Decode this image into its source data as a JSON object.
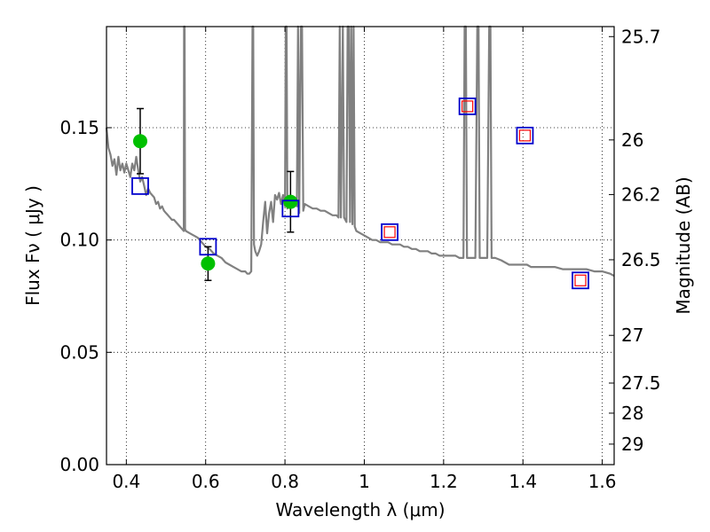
{
  "chart_data": {
    "type": "scatter",
    "xlabel": "Wavelength  λ (μm)",
    "ylabel": "Flux  Fν  ( μJy )",
    "y2label": "Magnitude (AB)",
    "xlim": [
      0.35,
      1.63
    ],
    "ylim": [
      0.0,
      0.195
    ],
    "grid": true,
    "x_ticks": [
      0.4,
      0.6,
      0.8,
      1.0,
      1.2,
      1.4,
      1.6
    ],
    "x_tick_labels": [
      "0.4",
      "0.6",
      "0.8",
      "1",
      "1.2",
      "1.4",
      "1.6"
    ],
    "y_ticks": [
      0.0,
      0.05,
      0.1,
      0.15
    ],
    "y_tick_labels": [
      "0.00",
      "0.05",
      "0.10",
      "0.15"
    ],
    "mag_ticks": [
      25.7,
      26,
      26.2,
      26.5,
      27,
      27.5,
      28,
      29
    ],
    "mag_tick_labels": [
      "25.7",
      "26",
      "26.2",
      "26.5",
      "27",
      "27.5",
      "28",
      "29"
    ],
    "series": [
      {
        "kind": "observed",
        "marker": "circle",
        "color": "#00c000",
        "points": [
          {
            "x": 0.435,
            "y": 0.144,
            "yerr": 0.0145
          },
          {
            "x": 0.606,
            "y": 0.0895,
            "yerr": 0.0075
          },
          {
            "x": 0.814,
            "y": 0.117,
            "yerr": 0.0135
          }
        ]
      },
      {
        "kind": "model_band_flux",
        "marker": "open-square",
        "color": "#0000cc",
        "points": [
          {
            "x": 0.435,
            "y": 0.124
          },
          {
            "x": 0.606,
            "y": 0.097
          },
          {
            "x": 0.814,
            "y": 0.114
          },
          {
            "x": 1.064,
            "y": 0.1035
          },
          {
            "x": 1.26,
            "y": 0.1595
          },
          {
            "x": 1.405,
            "y": 0.1465
          },
          {
            "x": 1.545,
            "y": 0.082
          }
        ]
      },
      {
        "kind": "model_band_flux_inner",
        "marker": "open-square",
        "color": "#ff0000",
        "points": [
          {
            "x": 1.064,
            "y": 0.1035
          },
          {
            "x": 1.26,
            "y": 0.1595
          },
          {
            "x": 1.405,
            "y": 0.1465
          },
          {
            "x": 1.545,
            "y": 0.082
          }
        ]
      }
    ],
    "model_spectrum": {
      "color": "#808080",
      "points": [
        [
          0.35,
          0.15
        ],
        [
          0.355,
          0.141
        ],
        [
          0.36,
          0.138
        ],
        [
          0.365,
          0.133
        ],
        [
          0.37,
          0.136
        ],
        [
          0.375,
          0.129
        ],
        [
          0.38,
          0.137
        ],
        [
          0.385,
          0.131
        ],
        [
          0.39,
          0.134
        ],
        [
          0.395,
          0.13
        ],
        [
          0.4,
          0.134
        ],
        [
          0.405,
          0.131
        ],
        [
          0.41,
          0.128
        ],
        [
          0.415,
          0.134
        ],
        [
          0.42,
          0.131
        ],
        [
          0.425,
          0.137
        ],
        [
          0.43,
          0.131
        ],
        [
          0.435,
          0.126
        ],
        [
          0.44,
          0.128
        ],
        [
          0.445,
          0.124
        ],
        [
          0.45,
          0.12
        ],
        [
          0.455,
          0.123
        ],
        [
          0.46,
          0.121
        ],
        [
          0.465,
          0.12
        ],
        [
          0.47,
          0.119
        ],
        [
          0.475,
          0.116
        ],
        [
          0.48,
          0.117
        ],
        [
          0.485,
          0.114
        ],
        [
          0.49,
          0.115
        ],
        [
          0.495,
          0.113
        ],
        [
          0.5,
          0.112
        ],
        [
          0.505,
          0.111
        ],
        [
          0.51,
          0.11
        ],
        [
          0.515,
          0.109
        ],
        [
          0.52,
          0.109
        ],
        [
          0.525,
          0.108
        ],
        [
          0.53,
          0.107
        ],
        [
          0.535,
          0.106
        ],
        [
          0.54,
          0.105
        ],
        [
          0.545,
          0.104
        ],
        [
          0.5455,
          0.195
        ],
        [
          0.547,
          0.195
        ],
        [
          0.548,
          0.105
        ],
        [
          0.55,
          0.104
        ],
        [
          0.56,
          0.103
        ],
        [
          0.57,
          0.102
        ],
        [
          0.58,
          0.101
        ],
        [
          0.59,
          0.099
        ],
        [
          0.6,
          0.097
        ],
        [
          0.61,
          0.096
        ],
        [
          0.62,
          0.094
        ],
        [
          0.63,
          0.093
        ],
        [
          0.64,
          0.092
        ],
        [
          0.65,
          0.09
        ],
        [
          0.66,
          0.089
        ],
        [
          0.67,
          0.088
        ],
        [
          0.68,
          0.087
        ],
        [
          0.69,
          0.086
        ],
        [
          0.7,
          0.086
        ],
        [
          0.705,
          0.085
        ],
        [
          0.71,
          0.085
        ],
        [
          0.715,
          0.086
        ],
        [
          0.718,
          0.195
        ],
        [
          0.72,
          0.195
        ],
        [
          0.722,
          0.098
        ],
        [
          0.725,
          0.095
        ],
        [
          0.73,
          0.093
        ],
        [
          0.735,
          0.095
        ],
        [
          0.74,
          0.098
        ],
        [
          0.745,
          0.108
        ],
        [
          0.75,
          0.117
        ],
        [
          0.755,
          0.103
        ],
        [
          0.76,
          0.112
        ],
        [
          0.765,
          0.117
        ],
        [
          0.77,
          0.108
        ],
        [
          0.775,
          0.12
        ],
        [
          0.78,
          0.118
        ],
        [
          0.785,
          0.121
        ],
        [
          0.79,
          0.116
        ],
        [
          0.795,
          0.12
        ],
        [
          0.8,
          0.115
        ],
        [
          0.802,
          0.195
        ],
        [
          0.804,
          0.195
        ],
        [
          0.806,
          0.114
        ],
        [
          0.81,
          0.118
        ],
        [
          0.815,
          0.116
        ],
        [
          0.82,
          0.119
        ],
        [
          0.825,
          0.116
        ],
        [
          0.83,
          0.115
        ],
        [
          0.833,
          0.195
        ],
        [
          0.836,
          0.112
        ],
        [
          0.84,
          0.195
        ],
        [
          0.843,
          0.195
        ],
        [
          0.846,
          0.113
        ],
        [
          0.85,
          0.116
        ],
        [
          0.86,
          0.115
        ],
        [
          0.87,
          0.114
        ],
        [
          0.88,
          0.114
        ],
        [
          0.89,
          0.113
        ],
        [
          0.9,
          0.113
        ],
        [
          0.91,
          0.112
        ],
        [
          0.92,
          0.111
        ],
        [
          0.93,
          0.111
        ],
        [
          0.935,
          0.11
        ],
        [
          0.938,
          0.195
        ],
        [
          0.941,
          0.11
        ],
        [
          0.946,
          0.195
        ],
        [
          0.949,
          0.11
        ],
        [
          0.955,
          0.108
        ],
        [
          0.958,
          0.195
        ],
        [
          0.961,
          0.195
        ],
        [
          0.964,
          0.108
        ],
        [
          0.967,
          0.195
        ],
        [
          0.97,
          0.107
        ],
        [
          0.973,
          0.195
        ],
        [
          0.976,
          0.106
        ],
        [
          0.98,
          0.104
        ],
        [
          0.99,
          0.103
        ],
        [
          1.0,
          0.102
        ],
        [
          1.01,
          0.101
        ],
        [
          1.02,
          0.1
        ],
        [
          1.03,
          0.1
        ],
        [
          1.04,
          0.099
        ],
        [
          1.05,
          0.099
        ],
        [
          1.06,
          0.099
        ],
        [
          1.07,
          0.098
        ],
        [
          1.08,
          0.098
        ],
        [
          1.09,
          0.098
        ],
        [
          1.1,
          0.097
        ],
        [
          1.11,
          0.097
        ],
        [
          1.12,
          0.096
        ],
        [
          1.13,
          0.096
        ],
        [
          1.14,
          0.095
        ],
        [
          1.15,
          0.095
        ],
        [
          1.16,
          0.095
        ],
        [
          1.17,
          0.094
        ],
        [
          1.18,
          0.094
        ],
        [
          1.19,
          0.093
        ],
        [
          1.2,
          0.093
        ],
        [
          1.21,
          0.093
        ],
        [
          1.22,
          0.093
        ],
        [
          1.23,
          0.093
        ],
        [
          1.24,
          0.092
        ],
        [
          1.25,
          0.092
        ],
        [
          1.253,
          0.195
        ],
        [
          1.256,
          0.195
        ],
        [
          1.259,
          0.092
        ],
        [
          1.27,
          0.092
        ],
        [
          1.28,
          0.092
        ],
        [
          1.285,
          0.195
        ],
        [
          1.288,
          0.195
        ],
        [
          1.291,
          0.092
        ],
        [
          1.3,
          0.092
        ],
        [
          1.31,
          0.092
        ],
        [
          1.315,
          0.195
        ],
        [
          1.318,
          0.195
        ],
        [
          1.321,
          0.092
        ],
        [
          1.33,
          0.092
        ],
        [
          1.345,
          0.091
        ],
        [
          1.355,
          0.09
        ],
        [
          1.365,
          0.089
        ],
        [
          1.375,
          0.089
        ],
        [
          1.39,
          0.089
        ],
        [
          1.4,
          0.089
        ],
        [
          1.41,
          0.089
        ],
        [
          1.42,
          0.088
        ],
        [
          1.44,
          0.088
        ],
        [
          1.46,
          0.088
        ],
        [
          1.48,
          0.088
        ],
        [
          1.5,
          0.087
        ],
        [
          1.52,
          0.087
        ],
        [
          1.54,
          0.087
        ],
        [
          1.56,
          0.087
        ],
        [
          1.58,
          0.086
        ],
        [
          1.6,
          0.086
        ],
        [
          1.62,
          0.085
        ],
        [
          1.63,
          0.084
        ]
      ]
    }
  }
}
